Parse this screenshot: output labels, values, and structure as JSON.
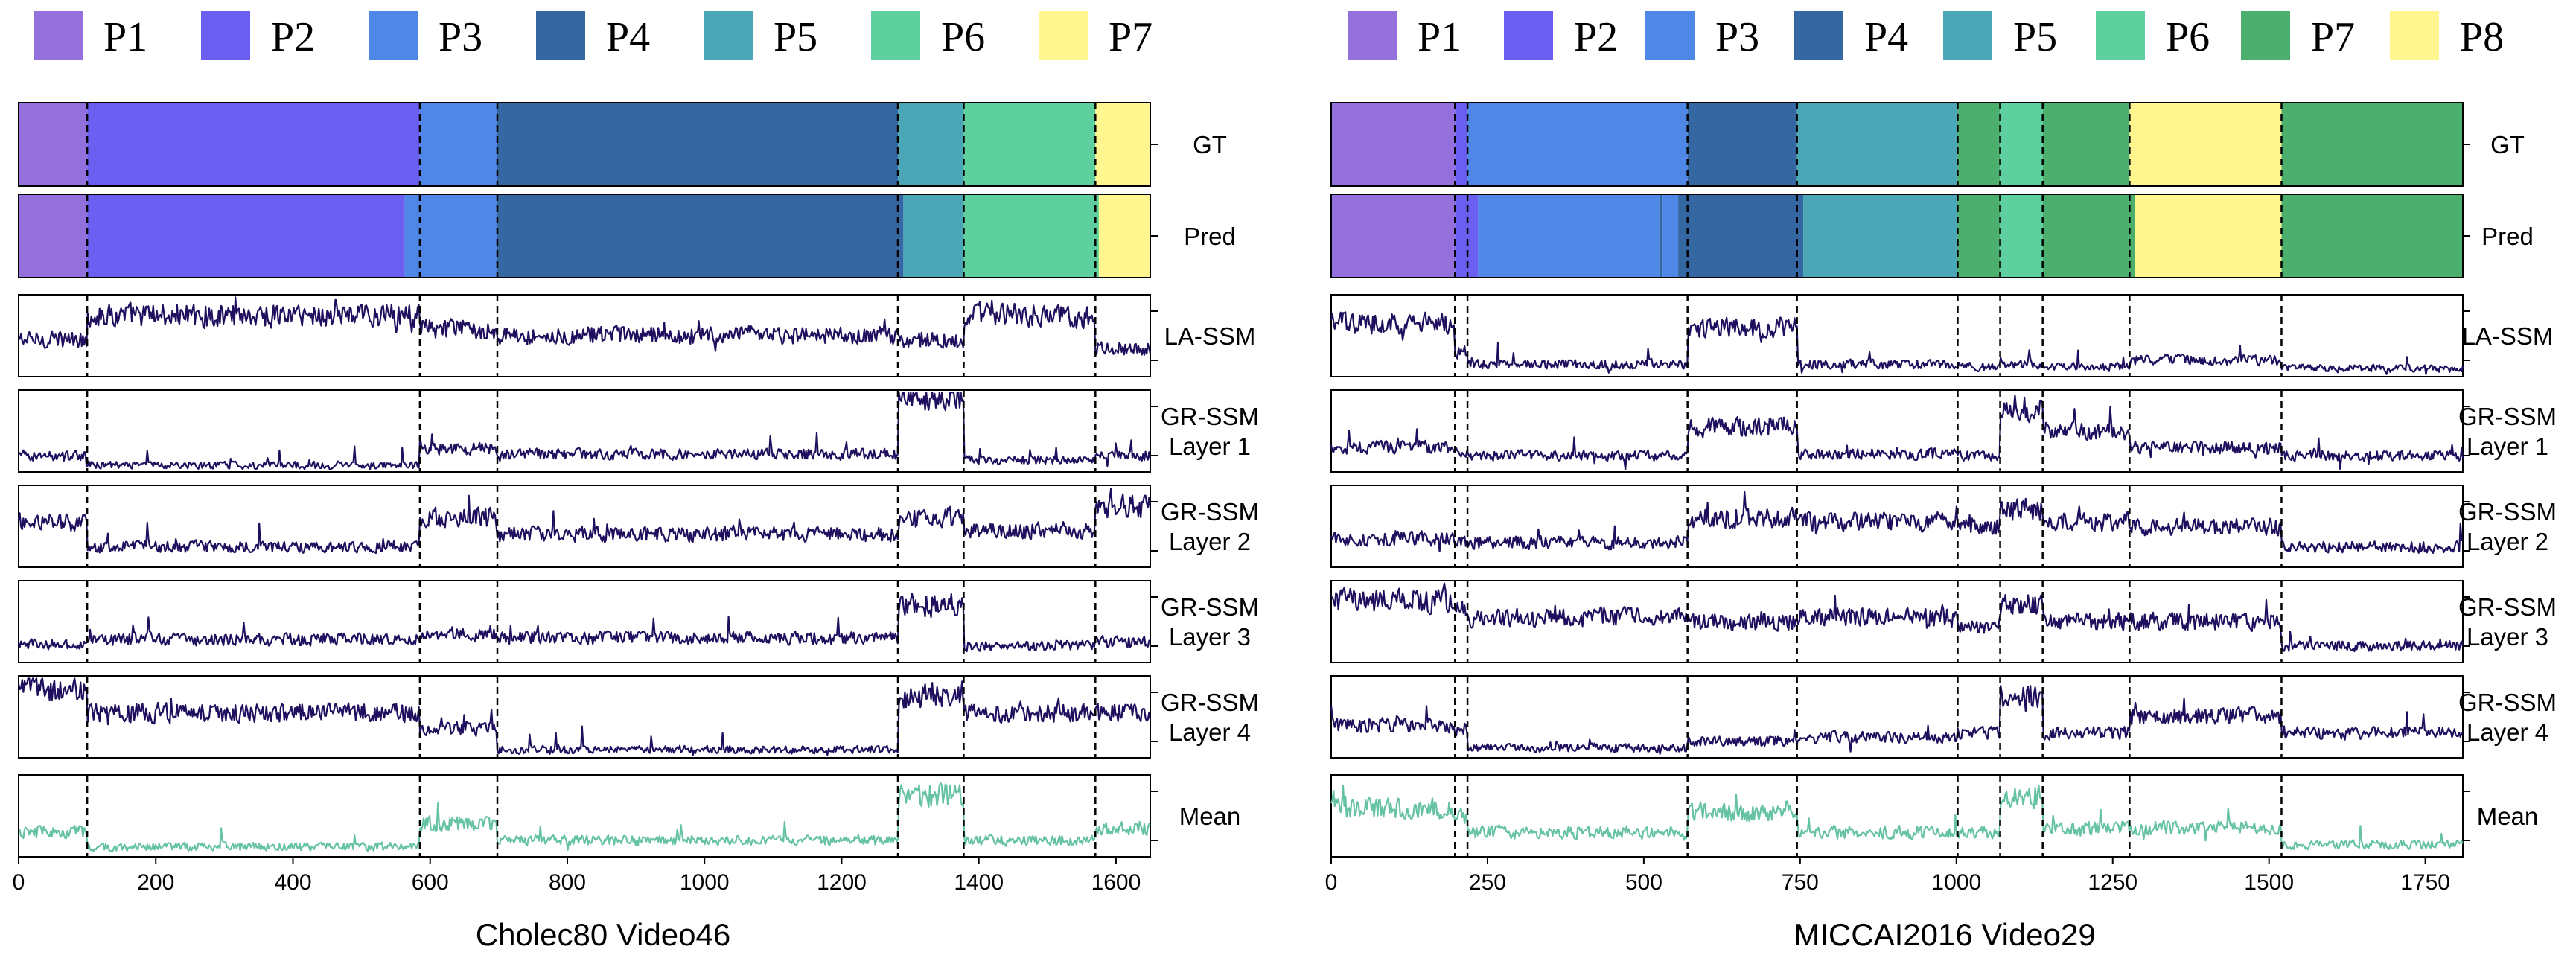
{
  "chart_data": [
    {
      "type": "timeline_with_lines",
      "caption": "Cholec80 Video46",
      "xlim": [
        0,
        1650
      ],
      "xticks": [
        0,
        200,
        400,
        600,
        800,
        1000,
        1200,
        1400,
        1600
      ],
      "legend": [
        {
          "label": "P1",
          "color": "#9370DB"
        },
        {
          "label": "P2",
          "color": "#6A5FF0"
        },
        {
          "label": "P3",
          "color": "#4E87E6"
        },
        {
          "label": "P4",
          "color": "#3568A3"
        },
        {
          "label": "P5",
          "color": "#4BA7B5"
        },
        {
          "label": "P6",
          "color": "#5ECF9E"
        },
        {
          "label": "P7",
          "color": "#FFF68F"
        }
      ],
      "boundaries": [
        100,
        585,
        698,
        1282,
        1378,
        1570
      ],
      "gt_label": "GT",
      "pred_label": "Pred",
      "gt_segments": [
        {
          "phase": 0,
          "start": 0,
          "end": 100
        },
        {
          "phase": 1,
          "start": 100,
          "end": 585
        },
        {
          "phase": 2,
          "start": 585,
          "end": 698
        },
        {
          "phase": 3,
          "start": 698,
          "end": 1282
        },
        {
          "phase": 4,
          "start": 1282,
          "end": 1378
        },
        {
          "phase": 5,
          "start": 1378,
          "end": 1570
        },
        {
          "phase": 6,
          "start": 1570,
          "end": 1650
        }
      ],
      "pred_segments": [
        {
          "phase": 0,
          "start": 0,
          "end": 100
        },
        {
          "phase": 1,
          "start": 100,
          "end": 563
        },
        {
          "phase": 2,
          "start": 563,
          "end": 698
        },
        {
          "phase": 3,
          "start": 698,
          "end": 1290
        },
        {
          "phase": 4,
          "start": 1290,
          "end": 1378
        },
        {
          "phase": 5,
          "start": 1378,
          "end": 1575
        },
        {
          "phase": 6,
          "start": 1575,
          "end": 1650
        }
      ],
      "line_rows": [
        {
          "label": [
            "LA-SSM"
          ],
          "color": "#1F0F5E",
          "levels": [
            0.45,
            0.75,
            0.58,
            0.5,
            0.45,
            0.75,
            0.35,
            0.25
          ]
        },
        {
          "label": [
            "GR-SSM",
            "Layer 1"
          ],
          "color": "#1F0F5E",
          "levels": [
            0.2,
            0.08,
            0.28,
            0.22,
            0.92,
            0.15,
            0.2,
            0.22
          ]
        },
        {
          "label": [
            "GR-SSM",
            "Layer 2"
          ],
          "color": "#1F0F5E",
          "levels": [
            0.55,
            0.25,
            0.6,
            0.4,
            0.6,
            0.45,
            0.75,
            0.85
          ]
        },
        {
          "label": [
            "GR-SSM",
            "Layer 3"
          ],
          "color": "#1F0F5E",
          "levels": [
            0.22,
            0.28,
            0.35,
            0.3,
            0.7,
            0.2,
            0.25,
            0.25
          ]
        },
        {
          "label": [
            "GR-SSM",
            "Layer 4"
          ],
          "color": "#1F0F5E",
          "levels": [
            0.85,
            0.55,
            0.35,
            0.1,
            0.75,
            0.55,
            0.55,
            0.6
          ]
        },
        {
          "label": [
            "Mean"
          ],
          "color": "#66C2A5",
          "levels": [
            0.3,
            0.12,
            0.4,
            0.2,
            0.75,
            0.2,
            0.35,
            0.4
          ]
        }
      ]
    },
    {
      "type": "timeline_with_lines",
      "caption": "MICCAI2016 Video29",
      "xlim": [
        0,
        1810
      ],
      "xticks": [
        0,
        250,
        500,
        750,
        1000,
        1250,
        1500,
        1750
      ],
      "legend": [
        {
          "label": "P1",
          "color": "#9370DB"
        },
        {
          "label": "P2",
          "color": "#6A5FF0"
        },
        {
          "label": "P3",
          "color": "#4E87E6"
        },
        {
          "label": "P4",
          "color": "#3568A3"
        },
        {
          "label": "P5",
          "color": "#4BA7B5"
        },
        {
          "label": "P6",
          "color": "#5ECF9E"
        },
        {
          "label": "P7",
          "color": "#4CAF6E"
        },
        {
          "label": "P8",
          "color": "#FFF68F"
        }
      ],
      "boundaries": [
        198,
        218,
        570,
        745,
        1002,
        1070,
        1138,
        1277,
        1520
      ],
      "gt_label": "GT",
      "pred_label": "Pred",
      "gt_segments": [
        {
          "phase": 0,
          "start": 0,
          "end": 198
        },
        {
          "phase": 1,
          "start": 198,
          "end": 218
        },
        {
          "phase": 2,
          "start": 218,
          "end": 570
        },
        {
          "phase": 3,
          "start": 570,
          "end": 745
        },
        {
          "phase": 4,
          "start": 745,
          "end": 1002
        },
        {
          "phase": 6,
          "start": 1002,
          "end": 1070
        },
        {
          "phase": 5,
          "start": 1070,
          "end": 1138
        },
        {
          "phase": 6,
          "start": 1138,
          "end": 1277
        },
        {
          "phase": 7,
          "start": 1277,
          "end": 1520
        },
        {
          "phase": 6,
          "start": 1520,
          "end": 1810
        }
      ],
      "pred_segments": [
        {
          "phase": 0,
          "start": 0,
          "end": 198
        },
        {
          "phase": 1,
          "start": 198,
          "end": 235
        },
        {
          "phase": 2,
          "start": 235,
          "end": 525
        },
        {
          "phase": 3,
          "start": 525,
          "end": 530
        },
        {
          "phase": 2,
          "start": 530,
          "end": 555
        },
        {
          "phase": 3,
          "start": 555,
          "end": 755
        },
        {
          "phase": 4,
          "start": 755,
          "end": 1002
        },
        {
          "phase": 6,
          "start": 1002,
          "end": 1070
        },
        {
          "phase": 5,
          "start": 1070,
          "end": 1138
        },
        {
          "phase": 6,
          "start": 1138,
          "end": 1285
        },
        {
          "phase": 7,
          "start": 1285,
          "end": 1520
        },
        {
          "phase": 6,
          "start": 1520,
          "end": 1810
        }
      ],
      "line_rows": [
        {
          "label": [
            "LA-SSM"
          ],
          "color": "#1F0F5E",
          "levels": [
            0.65,
            0.3,
            0.15,
            0.6,
            0.15,
            0.12,
            0.15,
            0.12,
            0.2,
            0.1
          ]
        },
        {
          "label": [
            "GR-SSM",
            "Layer 1"
          ],
          "color": "#1F0F5E",
          "levels": [
            0.3,
            0.25,
            0.2,
            0.55,
            0.22,
            0.2,
            0.75,
            0.5,
            0.3,
            0.2
          ]
        },
        {
          "label": [
            "GR-SSM",
            "Layer 2"
          ],
          "color": "#1F0F5E",
          "levels": [
            0.35,
            0.3,
            0.3,
            0.6,
            0.55,
            0.5,
            0.7,
            0.55,
            0.5,
            0.25
          ]
        },
        {
          "label": [
            "GR-SSM",
            "Layer 3"
          ],
          "color": "#1F0F5E",
          "levels": [
            0.75,
            0.7,
            0.55,
            0.5,
            0.55,
            0.45,
            0.7,
            0.5,
            0.5,
            0.2
          ]
        },
        {
          "label": [
            "GR-SSM",
            "Layer 4"
          ],
          "color": "#1F0F5E",
          "levels": [
            0.4,
            0.35,
            0.12,
            0.2,
            0.25,
            0.3,
            0.75,
            0.3,
            0.5,
            0.3
          ]
        },
        {
          "label": [
            "Mean"
          ],
          "color": "#66C2A5",
          "levels": [
            0.6,
            0.5,
            0.3,
            0.55,
            0.3,
            0.3,
            0.75,
            0.35,
            0.35,
            0.15
          ]
        }
      ]
    }
  ]
}
